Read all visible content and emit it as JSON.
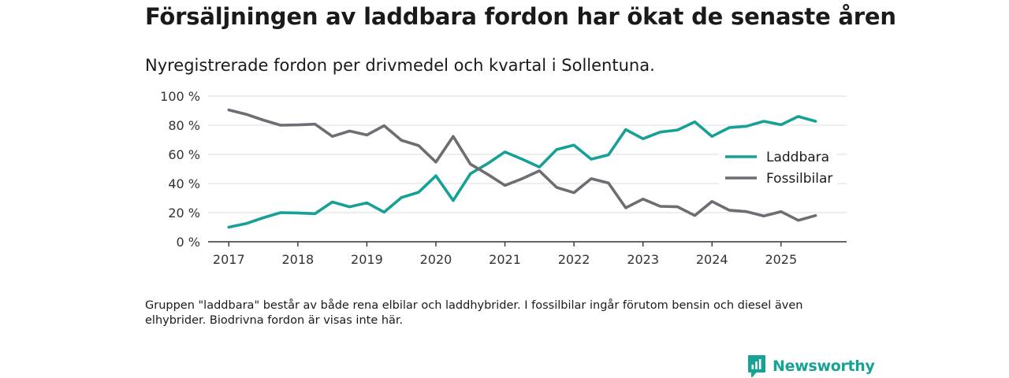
{
  "header": {
    "title": "Försäljningen av laddbara fordon har ökat de senaste åren",
    "subtitle": "Nyregistrerade fordon per drivmedel och kvartal i Sollentuna."
  },
  "footer": {
    "note": "Gruppen \"laddbara\" består av både rena elbilar och laddhybrider. I fossilbilar ingår förutom bensin och diesel även elhybrider. Biodrivna fordon är visas inte här.",
    "brand": "Newsworthy"
  },
  "colors": {
    "laddbara": "#17a096",
    "fossil": "#6f6c73",
    "brand": "#16a396"
  },
  "chart_data": {
    "type": "line",
    "title": "Försäljningen av laddbara fordon har ökat de senaste åren",
    "subtitle": "Nyregistrerade fordon per drivmedel och kvartal i Sollentuna.",
    "xlabel": "",
    "ylabel": "",
    "ylim": [
      0,
      100
    ],
    "xlim": [
      2016.7,
      2025.95
    ],
    "y_ticks": [
      0,
      20,
      40,
      60,
      80,
      100
    ],
    "y_tick_labels": [
      "0 %",
      "20 %",
      "40 %",
      "60 %",
      "80 %",
      "100 %"
    ],
    "x_ticks": [
      2017,
      2018,
      2019,
      2020,
      2021,
      2022,
      2023,
      2024,
      2025
    ],
    "x_tick_labels": [
      "2017",
      "2018",
      "2019",
      "2020",
      "2021",
      "2022",
      "2023",
      "2024",
      "2025"
    ],
    "grid": true,
    "legend_position": "right",
    "x": [
      2017.0,
      2017.25,
      2017.5,
      2017.75,
      2018.0,
      2018.25,
      2018.5,
      2018.75,
      2019.0,
      2019.25,
      2019.5,
      2019.75,
      2020.0,
      2020.25,
      2020.5,
      2020.75,
      2021.0,
      2021.25,
      2021.5,
      2021.75,
      2022.0,
      2022.25,
      2022.5,
      2022.75,
      2023.0,
      2023.25,
      2023.5,
      2023.75,
      2024.0,
      2024.25,
      2024.5,
      2024.75,
      2025.0,
      2025.25,
      2025.5
    ],
    "series": [
      {
        "name": "Laddbara",
        "color": "#17a096",
        "values": [
          10,
          12.5,
          16.5,
          20,
          19.8,
          19.3,
          27.3,
          24,
          26.7,
          20.3,
          30.3,
          34,
          45.3,
          28.3,
          46.7,
          53.7,
          61.7,
          56.7,
          51.3,
          63.3,
          66.3,
          56.7,
          59.7,
          77,
          70.7,
          75.3,
          76.7,
          82.3,
          72.3,
          78.3,
          79.3,
          82.7,
          80.3,
          86,
          82.7
        ]
      },
      {
        "name": "Fossilbilar",
        "color": "#6f6c73",
        "values": [
          90.5,
          87.5,
          83.5,
          80,
          80.2,
          80.7,
          72.3,
          76,
          73.3,
          79.7,
          69.7,
          66,
          54.7,
          72.3,
          53.3,
          46.3,
          38.7,
          43.3,
          48.7,
          37.3,
          33.7,
          43.3,
          40.3,
          23.3,
          29.3,
          24.3,
          24,
          18,
          27.7,
          21.7,
          20.7,
          17.7,
          20.7,
          14.7,
          18
        ]
      }
    ]
  }
}
